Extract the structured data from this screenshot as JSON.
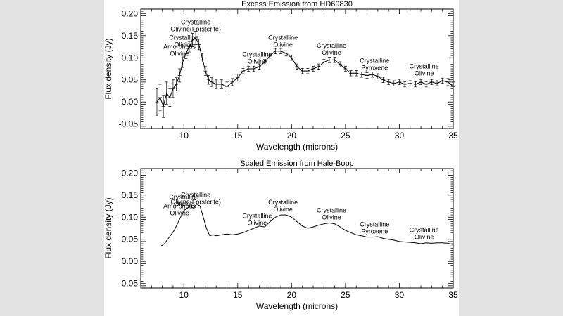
{
  "chart_data": [
    {
      "type": "line",
      "style": "errorbar",
      "title": "Excess Emission from HD69830",
      "xlabel": "Wavelength (microns)",
      "ylabel": "Flux density (Jy)",
      "xlim": [
        6,
        35
      ],
      "ylim": [
        -0.06,
        0.21
      ],
      "xticks": [
        10,
        15,
        20,
        25,
        30,
        35
      ],
      "yticks": [
        -0.05,
        0.0,
        0.05,
        0.1,
        0.15,
        0.2
      ],
      "color": "#000000",
      "series": [
        {
          "x": [
            7.5,
            7.8,
            8.1,
            8.4,
            8.7,
            9.0,
            9.3,
            9.6,
            9.9,
            10.2,
            10.5,
            10.8,
            11.1,
            11.4,
            11.7,
            12.0,
            12.3,
            12.6,
            13.0,
            13.5,
            14.0,
            14.5,
            15.0,
            15.5,
            16.0,
            16.5,
            17.0,
            17.5,
            18.0,
            18.5,
            19.0,
            19.5,
            20.0,
            20.5,
            21.0,
            21.5,
            22.0,
            22.5,
            23.0,
            23.5,
            24.0,
            24.5,
            25.0,
            25.5,
            26.0,
            26.5,
            27.0,
            27.5,
            28.0,
            28.5,
            29.0,
            29.5,
            30.0,
            30.5,
            31.0,
            31.5,
            32.0,
            32.5,
            33.0,
            33.5,
            34.0,
            34.5,
            35.0
          ],
          "y": [
            0.0,
            0.01,
            -0.01,
            0.02,
            0.01,
            0.03,
            0.04,
            0.06,
            0.09,
            0.11,
            0.125,
            0.14,
            0.145,
            0.13,
            0.1,
            0.07,
            0.05,
            0.045,
            0.04,
            0.04,
            0.035,
            0.045,
            0.055,
            0.07,
            0.075,
            0.075,
            0.08,
            0.09,
            0.105,
            0.115,
            0.115,
            0.11,
            0.1,
            0.08,
            0.07,
            0.07,
            0.075,
            0.08,
            0.09,
            0.095,
            0.095,
            0.085,
            0.075,
            0.065,
            0.065,
            0.062,
            0.06,
            0.062,
            0.058,
            0.05,
            0.045,
            0.042,
            0.045,
            0.04,
            0.042,
            0.04,
            0.045,
            0.04,
            0.045,
            0.042,
            0.048,
            0.045,
            0.035
          ],
          "err": [
            0.03,
            0.03,
            0.025,
            0.025,
            0.02,
            0.02,
            0.015,
            0.015,
            0.012,
            0.012,
            0.012,
            0.015,
            0.015,
            0.012,
            0.01,
            0.01,
            0.01,
            0.01,
            0.01,
            0.01,
            0.01,
            0.008,
            0.008,
            0.006,
            0.006,
            0.006,
            0.006,
            0.006,
            0.006,
            0.006,
            0.006,
            0.006,
            0.006,
            0.006,
            0.006,
            0.006,
            0.006,
            0.006,
            0.006,
            0.006,
            0.006,
            0.006,
            0.006,
            0.006,
            0.006,
            0.006,
            0.006,
            0.006,
            0.006,
            0.006,
            0.006,
            0.006,
            0.006,
            0.006,
            0.006,
            0.006,
            0.006,
            0.006,
            0.006,
            0.006,
            0.006,
            0.008,
            0.01
          ]
        }
      ],
      "annotations": [
        {
          "lines": [
            "Amorphous",
            "Olivine"
          ],
          "x": 9.6,
          "y": 0.1
        },
        {
          "lines": [
            "Crystalline",
            "Olivine"
          ],
          "x": 10.0,
          "y": 0.12
        },
        {
          "lines": [
            "Crystalline",
            "Olivine(Forsterite)"
          ],
          "x": 11.1,
          "y": 0.155
        },
        {
          "lines": [
            "Crystalline",
            "Olivine"
          ],
          "x": 16.8,
          "y": 0.082
        },
        {
          "lines": [
            "Crystalline",
            "Olivine"
          ],
          "x": 19.2,
          "y": 0.12
        },
        {
          "lines": [
            "Crystalline",
            "Olivine"
          ],
          "x": 23.7,
          "y": 0.102
        },
        {
          "lines": [
            "Crystalline",
            "Pyroxene"
          ],
          "x": 27.7,
          "y": 0.068
        },
        {
          "lines": [
            "Crystalline",
            "Olivine"
          ],
          "x": 32.3,
          "y": 0.055
        }
      ]
    },
    {
      "type": "line",
      "title": "Scaled Emission from Hale-Bopp",
      "xlabel": "Wavelength (microns)",
      "ylabel": "Flux density (Jy)",
      "xlim": [
        6,
        35
      ],
      "ylim": [
        -0.06,
        0.21
      ],
      "xticks": [
        10,
        15,
        20,
        25,
        30,
        35
      ],
      "yticks": [
        -0.05,
        0.0,
        0.05,
        0.1,
        0.15,
        0.2
      ],
      "color": "#000000",
      "series": [
        {
          "x": [
            7.9,
            8.2,
            8.5,
            8.8,
            9.1,
            9.4,
            9.7,
            10.0,
            10.3,
            10.6,
            10.9,
            11.2,
            11.5,
            11.8,
            12.1,
            12.4,
            12.7,
            13.0,
            13.5,
            14.0,
            14.5,
            15.0,
            15.5,
            16.0,
            16.5,
            17.0,
            17.5,
            18.0,
            18.5,
            19.0,
            19.5,
            20.0,
            20.5,
            21.0,
            21.5,
            22.0,
            22.5,
            23.0,
            23.5,
            24.0,
            24.5,
            25.0,
            25.5,
            26.0,
            26.5,
            27.0,
            27.5,
            28.0,
            28.5,
            29.0,
            29.5,
            30.0,
            30.5,
            31.0,
            31.5,
            32.0,
            32.5,
            33.0,
            33.5,
            34.0,
            34.5,
            35.0
          ],
          "y": [
            0.035,
            0.04,
            0.05,
            0.06,
            0.07,
            0.085,
            0.1,
            0.115,
            0.12,
            0.125,
            0.12,
            0.13,
            0.125,
            0.1,
            0.075,
            0.058,
            0.06,
            0.058,
            0.06,
            0.062,
            0.06,
            0.062,
            0.065,
            0.07,
            0.075,
            0.08,
            0.078,
            0.09,
            0.1,
            0.105,
            0.105,
            0.1,
            0.09,
            0.08,
            0.075,
            0.078,
            0.082,
            0.085,
            0.087,
            0.085,
            0.078,
            0.07,
            0.065,
            0.06,
            0.058,
            0.055,
            0.055,
            0.056,
            0.052,
            0.05,
            0.048,
            0.045,
            0.044,
            0.043,
            0.042,
            0.04,
            0.042,
            0.041,
            0.042,
            0.042,
            0.041,
            0.038
          ]
        }
      ],
      "annotations": [
        {
          "lines": [
            "Amorphous",
            "Olivine"
          ],
          "x": 9.6,
          "y": 0.1
        },
        {
          "lines": [
            "Crystalline",
            "Olivine"
          ],
          "x": 10.0,
          "y": 0.12
        },
        {
          "lines": [
            "Crystalline",
            "Olivine(Forsterite)"
          ],
          "x": 11.1,
          "y": 0.125
        },
        {
          "lines": [
            "Crystalline",
            "Olivine"
          ],
          "x": 16.8,
          "y": 0.077
        },
        {
          "lines": [
            "Crystalline",
            "Olivine"
          ],
          "x": 19.2,
          "y": 0.108
        },
        {
          "lines": [
            "Crystalline",
            "Olivine"
          ],
          "x": 23.7,
          "y": 0.09
        },
        {
          "lines": [
            "Crystalline",
            "Pyroxene"
          ],
          "x": 27.7,
          "y": 0.058
        },
        {
          "lines": [
            "Crystalline",
            "Olivine"
          ],
          "x": 32.3,
          "y": 0.046
        }
      ]
    }
  ]
}
